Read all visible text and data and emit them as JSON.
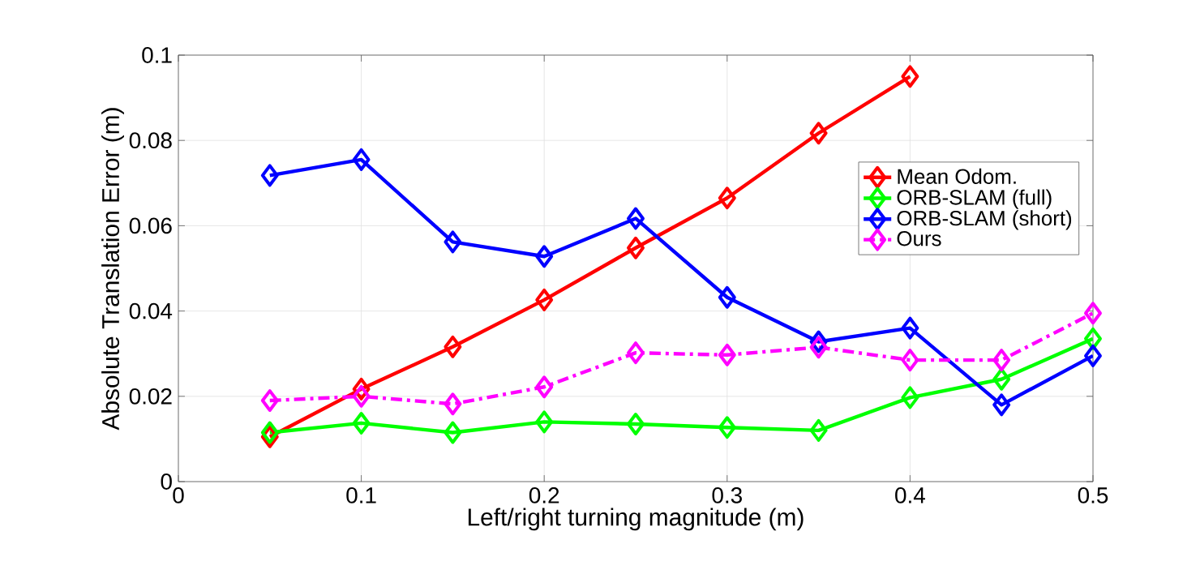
{
  "chart_data": {
    "type": "line",
    "xlabel": "Left/right turning magnitude (m)",
    "ylabel": "Absolute Translation Error (m)",
    "x": [
      0.05,
      0.1,
      0.15,
      0.2,
      0.25,
      0.3,
      0.35,
      0.4,
      0.45,
      0.5
    ],
    "series": [
      {
        "name": "Mean Odom.",
        "color": "#ff0000",
        "x": [
          0.05,
          0.1,
          0.15,
          0.2,
          0.25,
          0.3,
          0.35,
          0.4
        ],
        "values": [
          0.0105,
          0.0217,
          0.0316,
          0.0426,
          0.0548,
          0.0665,
          0.0817,
          0.095
        ]
      },
      {
        "name": "ORB-SLAM (full)",
        "color": "#00ff00",
        "values": [
          0.0115,
          0.0137,
          0.0115,
          0.014,
          0.0135,
          0.0127,
          0.012,
          0.0197,
          0.024,
          0.0335
        ]
      },
      {
        "name": "ORB-SLAM (short)",
        "color": "#0000ff",
        "values": [
          0.0718,
          0.0755,
          0.0562,
          0.0528,
          0.0617,
          0.0432,
          0.0328,
          0.036,
          0.018,
          0.0295
        ]
      },
      {
        "name": "Ours",
        "color": "#ff00ff",
        "line_style": "dashdot",
        "values": [
          0.019,
          0.02,
          0.0182,
          0.0222,
          0.0302,
          0.0297,
          0.0315,
          0.0285,
          0.0285,
          0.0395
        ]
      }
    ],
    "xlim": [
      0,
      0.5
    ],
    "ylim": [
      0,
      0.1
    ],
    "xticks": [
      0,
      0.1,
      0.2,
      0.3,
      0.4,
      0.5
    ],
    "yticks": [
      0,
      0.02,
      0.04,
      0.06,
      0.08,
      0.1
    ],
    "grid": true,
    "legend": "right",
    "marker": "diamond",
    "line_style": "solid"
  }
}
